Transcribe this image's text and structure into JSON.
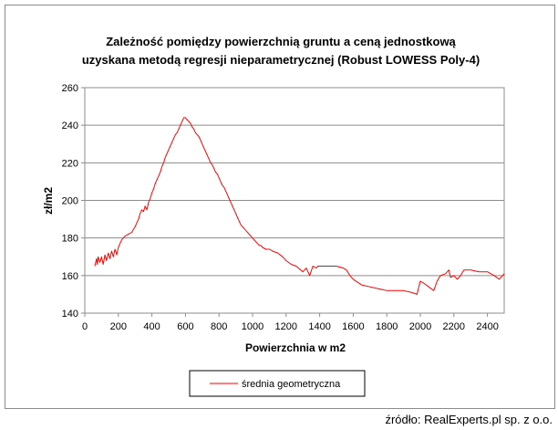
{
  "source_note": "źródło: RealExperts.pl sp. z o.o.",
  "chart_data": {
    "type": "line",
    "title_line1": "Zależność pomiędzy powierzchnią gruntu a ceną jednostkową",
    "title_line2": "uzyskana metodą regresji nieparametrycznej (Robust LOWESS Poly-4)",
    "xlabel": "Powierzchnia  w m2",
    "ylabel": "zł/m2",
    "xlim": [
      0,
      2500
    ],
    "ylim": [
      140,
      260
    ],
    "xticks": [
      0,
      200,
      400,
      600,
      800,
      1000,
      1200,
      1400,
      1600,
      1800,
      2000,
      2200,
      2400
    ],
    "yticks": [
      140,
      160,
      180,
      200,
      220,
      240,
      260
    ],
    "grid": "horizontal",
    "legend_position": "bottom",
    "series_color": "#ff0000",
    "series": [
      {
        "name": "średnia geometryczna",
        "x": [
          60,
          70,
          75,
          80,
          90,
          100,
          110,
          120,
          130,
          140,
          150,
          160,
          170,
          180,
          190,
          200,
          210,
          220,
          240,
          260,
          280,
          300,
          310,
          320,
          330,
          340,
          350,
          360,
          370,
          380,
          390,
          400,
          410,
          420,
          430,
          440,
          450,
          460,
          470,
          480,
          490,
          500,
          510,
          520,
          530,
          540,
          550,
          560,
          570,
          580,
          590,
          600,
          610,
          620,
          630,
          640,
          650,
          660,
          670,
          680,
          690,
          700,
          710,
          720,
          730,
          740,
          750,
          760,
          770,
          780,
          790,
          800,
          810,
          820,
          830,
          840,
          850,
          860,
          870,
          880,
          890,
          900,
          910,
          920,
          930,
          940,
          950,
          960,
          970,
          980,
          990,
          1000,
          1010,
          1020,
          1030,
          1040,
          1050,
          1060,
          1080,
          1100,
          1120,
          1150,
          1180,
          1200,
          1230,
          1260,
          1300,
          1320,
          1340,
          1360,
          1380,
          1390,
          1420,
          1460,
          1500,
          1540,
          1560,
          1580,
          1600,
          1650,
          1700,
          1750,
          1800,
          1850,
          1900,
          1950,
          1980,
          2000,
          2020,
          2050,
          2080,
          2100,
          2120,
          2150,
          2170,
          2180,
          2200,
          2220,
          2240,
          2260,
          2300,
          2350,
          2400,
          2440,
          2470,
          2500
        ],
        "y": [
          165,
          169,
          166,
          170,
          167,
          170,
          166,
          171,
          168,
          172,
          169,
          173,
          170,
          174,
          171,
          175,
          177,
          179,
          181,
          182,
          183,
          186,
          188,
          190,
          193,
          195,
          194,
          197,
          195,
          199,
          201,
          204,
          206,
          209,
          211,
          213,
          215,
          218,
          220,
          223,
          225,
          227,
          229,
          231,
          233,
          235,
          236,
          238,
          240,
          242,
          244,
          244,
          243,
          242,
          241,
          239,
          238,
          236,
          235,
          234,
          232,
          230,
          228,
          226,
          224,
          222,
          220,
          219,
          217,
          215,
          214,
          212,
          210,
          208,
          207,
          205,
          203,
          201,
          199,
          197,
          195,
          193,
          191,
          189,
          187,
          186,
          185,
          184,
          183,
          182,
          181,
          180,
          179,
          178,
          177,
          176,
          176,
          175,
          174,
          174,
          173,
          172,
          170,
          168,
          166,
          165,
          162,
          164,
          160,
          165,
          164,
          165,
          165,
          165,
          165,
          164,
          163,
          160,
          158,
          155,
          154,
          153,
          152,
          152,
          152,
          151,
          150,
          157,
          156,
          154,
          152,
          157,
          160,
          161,
          163,
          159,
          160,
          158,
          160,
          163,
          163,
          162,
          162,
          160,
          158,
          161
        ]
      }
    ]
  }
}
